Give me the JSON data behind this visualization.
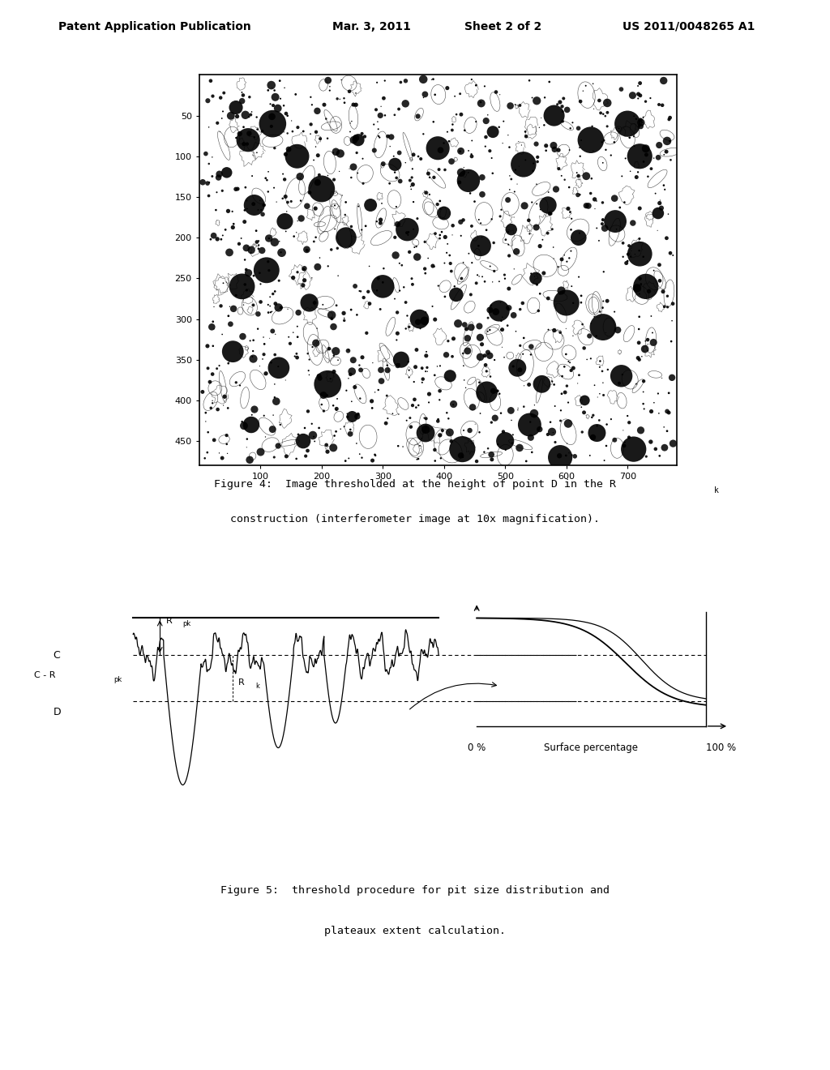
{
  "background_color": "#ffffff",
  "header_text": "Patent Application Publication",
  "header_date": "Mar. 3, 2011",
  "header_sheet": "Sheet 2 of 2",
  "header_patent": "US 2011/0048265 A1",
  "fig4_caption_line1": "Figure 4:  Image thresholded at the height of point D in the R",
  "fig4_caption_k": "k",
  "fig4_caption_line2": "construction (interferometer image at 10x magnification).",
  "fig5_caption_line1": "Figure 5:  threshold procedure for pit size distribution and",
  "fig5_caption_line2": "plateaux extent calculation.",
  "fig5_xlabel_left": "0 %",
  "fig5_xlabel_mid": "Surface percentage",
  "fig5_xlabel_right": "100 %",
  "label_C": "C",
  "label_C_Rpk": "C - R",
  "label_C_Rpk_sub": "pk",
  "label_D": "D",
  "label_Rpk": "R",
  "label_Rpk_sub": "pk",
  "label_Rk": "R",
  "label_Rk_sub": "k"
}
